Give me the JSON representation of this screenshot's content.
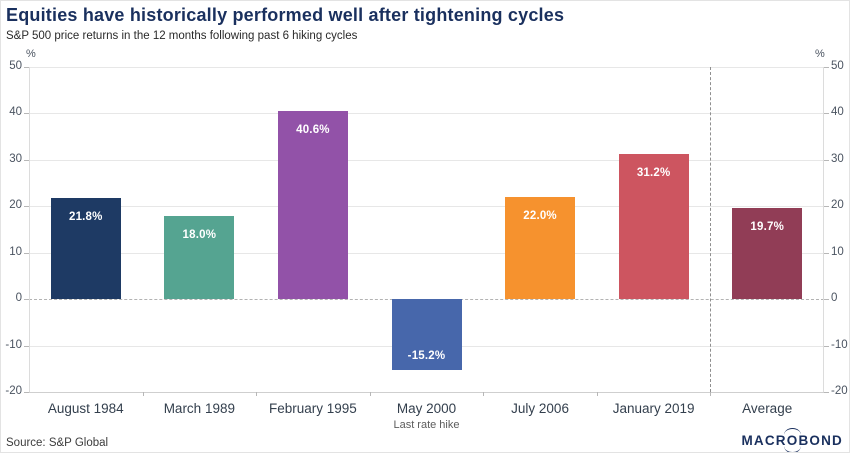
{
  "header": {
    "title": "Equities have historically performed well after tightening cycles",
    "subtitle": "S&P 500 price returns in the 12 months following past 6 hiking cycles"
  },
  "chart_data": {
    "type": "bar",
    "categories": [
      "August 1984",
      "March 1989",
      "February 1995",
      "May 2000",
      "July 2006",
      "January 2019",
      "Average"
    ],
    "values": [
      21.8,
      18.0,
      40.6,
      -15.2,
      22.0,
      31.2,
      19.7
    ],
    "value_labels": [
      "21.8%",
      "18.0%",
      "40.6%",
      "-15.2%",
      "22.0%",
      "31.2%",
      "19.7%"
    ],
    "bar_colors": [
      "#1e3a64",
      "#55a491",
      "#9252a8",
      "#4767ab",
      "#f6922e",
      "#cd5560",
      "#913d56"
    ],
    "category_sublabel": {
      "index": 3,
      "text": "Last rate hike"
    },
    "unit_label": "%",
    "ylim": [
      -20,
      50
    ],
    "ytick_step": 10,
    "yticks": [
      50,
      40,
      30,
      20,
      10,
      0,
      -10,
      -20
    ],
    "grid": true,
    "zero_line_style": "dashed",
    "separator_before_category": "Average",
    "legend": null
  },
  "footer": {
    "source": "Source: S&P Global",
    "logo_prefix": "MACR",
    "logo_o": "O",
    "logo_suffix": "BOND"
  }
}
